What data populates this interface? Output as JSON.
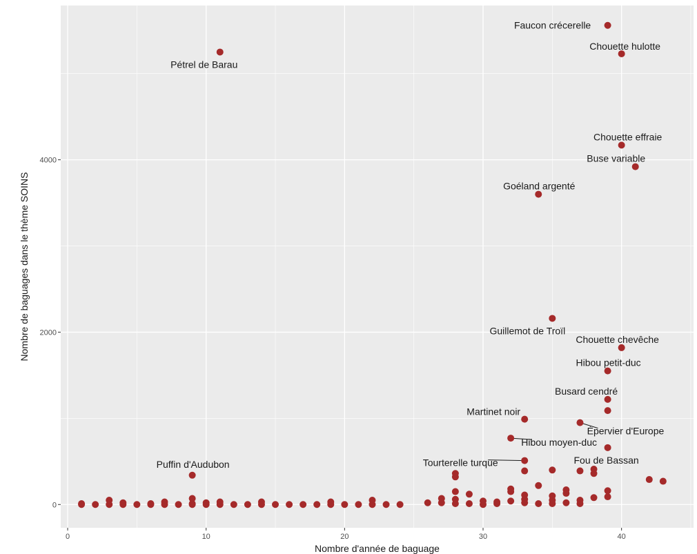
{
  "chart_data": {
    "type": "scatter",
    "xlabel": "Nombre d'année de baguage",
    "ylabel": "Nombre de baguages dans le thème SOINS",
    "xlim": [
      -0.5,
      45.2
    ],
    "ylim": [
      -270,
      5790
    ],
    "xticks": [
      0,
      10,
      20,
      30,
      40
    ],
    "yticks": [
      0,
      2000,
      4000
    ],
    "grid": true,
    "point_color": "#a52a2a",
    "panel_color": "#ebebeb",
    "points": [
      {
        "x": 39,
        "y": 5560,
        "label": "Faucon crécerelle"
      },
      {
        "x": 40,
        "y": 5230,
        "label": "Chouette hulotte"
      },
      {
        "x": 11,
        "y": 5250,
        "label": "Pétrel de Barau"
      },
      {
        "x": 40,
        "y": 4170,
        "label": "Chouette effraie"
      },
      {
        "x": 41,
        "y": 3920,
        "label": "Buse variable"
      },
      {
        "x": 34,
        "y": 3600,
        "label": "Goéland argenté"
      },
      {
        "x": 35,
        "y": 2160,
        "label": "Guillemot de Troïl"
      },
      {
        "x": 40,
        "y": 1820,
        "label": "Chouette chevêche"
      },
      {
        "x": 39,
        "y": 1550,
        "label": "Hibou petit-duc"
      },
      {
        "x": 39,
        "y": 1220,
        "label": "Busard cendré"
      },
      {
        "x": 33,
        "y": 990,
        "label": "Martinet noir"
      },
      {
        "x": 37,
        "y": 950,
        "label": "Épervier d'Europe"
      },
      {
        "x": 32,
        "y": 770,
        "label": "Hibou moyen-duc"
      },
      {
        "x": 39,
        "y": 660,
        "label": "Fou de Bassan"
      },
      {
        "x": 9,
        "y": 340,
        "label": "Puffin d'Audubon"
      },
      {
        "x": 39,
        "y": 1090
      },
      {
        "x": 33,
        "y": 510,
        "label": "Tourterelle turque"
      },
      {
        "x": 33,
        "y": 390
      },
      {
        "x": 35,
        "y": 400
      },
      {
        "x": 37,
        "y": 390
      },
      {
        "x": 38,
        "y": 410
      },
      {
        "x": 38,
        "y": 360
      },
      {
        "x": 28,
        "y": 360
      },
      {
        "x": 28,
        "y": 320
      },
      {
        "x": 42,
        "y": 290
      },
      {
        "x": 43,
        "y": 270
      },
      {
        "x": 34,
        "y": 220
      },
      {
        "x": 32,
        "y": 180
      },
      {
        "x": 32,
        "y": 150
      },
      {
        "x": 36,
        "y": 170
      },
      {
        "x": 36,
        "y": 130
      },
      {
        "x": 39,
        "y": 160
      },
      {
        "x": 39,
        "y": 90
      },
      {
        "x": 28,
        "y": 150
      },
      {
        "x": 29,
        "y": 120
      },
      {
        "x": 33,
        "y": 110
      },
      {
        "x": 35,
        "y": 100
      },
      {
        "x": 38,
        "y": 80
      },
      {
        "x": 27,
        "y": 70
      },
      {
        "x": 28,
        "y": 60
      },
      {
        "x": 33,
        "y": 60
      },
      {
        "x": 35,
        "y": 50
      },
      {
        "x": 37,
        "y": 50
      },
      {
        "x": 32,
        "y": 40
      },
      {
        "x": 30,
        "y": 40
      },
      {
        "x": 31,
        "y": 30
      },
      {
        "x": 26,
        "y": 20
      },
      {
        "x": 27,
        "y": 20
      },
      {
        "x": 28,
        "y": 10
      },
      {
        "x": 29,
        "y": 10
      },
      {
        "x": 30,
        "y": 0
      },
      {
        "x": 31,
        "y": 10
      },
      {
        "x": 33,
        "y": 20
      },
      {
        "x": 34,
        "y": 10
      },
      {
        "x": 35,
        "y": 10
      },
      {
        "x": 36,
        "y": 20
      },
      {
        "x": 37,
        "y": 10
      },
      {
        "x": 3,
        "y": 50
      },
      {
        "x": 9,
        "y": 70
      },
      {
        "x": 22,
        "y": 50
      },
      {
        "x": 19,
        "y": 30
      },
      {
        "x": 14,
        "y": 30
      },
      {
        "x": 11,
        "y": 30
      },
      {
        "x": 10,
        "y": 20
      },
      {
        "x": 7,
        "y": 30
      },
      {
        "x": 1,
        "y": 10
      },
      {
        "x": 1,
        "y": 0
      },
      {
        "x": 2,
        "y": 0
      },
      {
        "x": 3,
        "y": 0
      },
      {
        "x": 4,
        "y": 20
      },
      {
        "x": 4,
        "y": 0
      },
      {
        "x": 5,
        "y": 0
      },
      {
        "x": 6,
        "y": 10
      },
      {
        "x": 6,
        "y": 0
      },
      {
        "x": 7,
        "y": 0
      },
      {
        "x": 8,
        "y": 0
      },
      {
        "x": 9,
        "y": 10
      },
      {
        "x": 9,
        "y": 0
      },
      {
        "x": 10,
        "y": 0
      },
      {
        "x": 11,
        "y": 0
      },
      {
        "x": 12,
        "y": 0
      },
      {
        "x": 13,
        "y": 0
      },
      {
        "x": 14,
        "y": 0
      },
      {
        "x": 15,
        "y": 0
      },
      {
        "x": 16,
        "y": 0
      },
      {
        "x": 17,
        "y": 0
      },
      {
        "x": 18,
        "y": 0
      },
      {
        "x": 19,
        "y": 0
      },
      {
        "x": 20,
        "y": 0
      },
      {
        "x": 21,
        "y": 0
      },
      {
        "x": 22,
        "y": 0
      },
      {
        "x": 23,
        "y": 0
      },
      {
        "x": 24,
        "y": 0
      }
    ]
  }
}
